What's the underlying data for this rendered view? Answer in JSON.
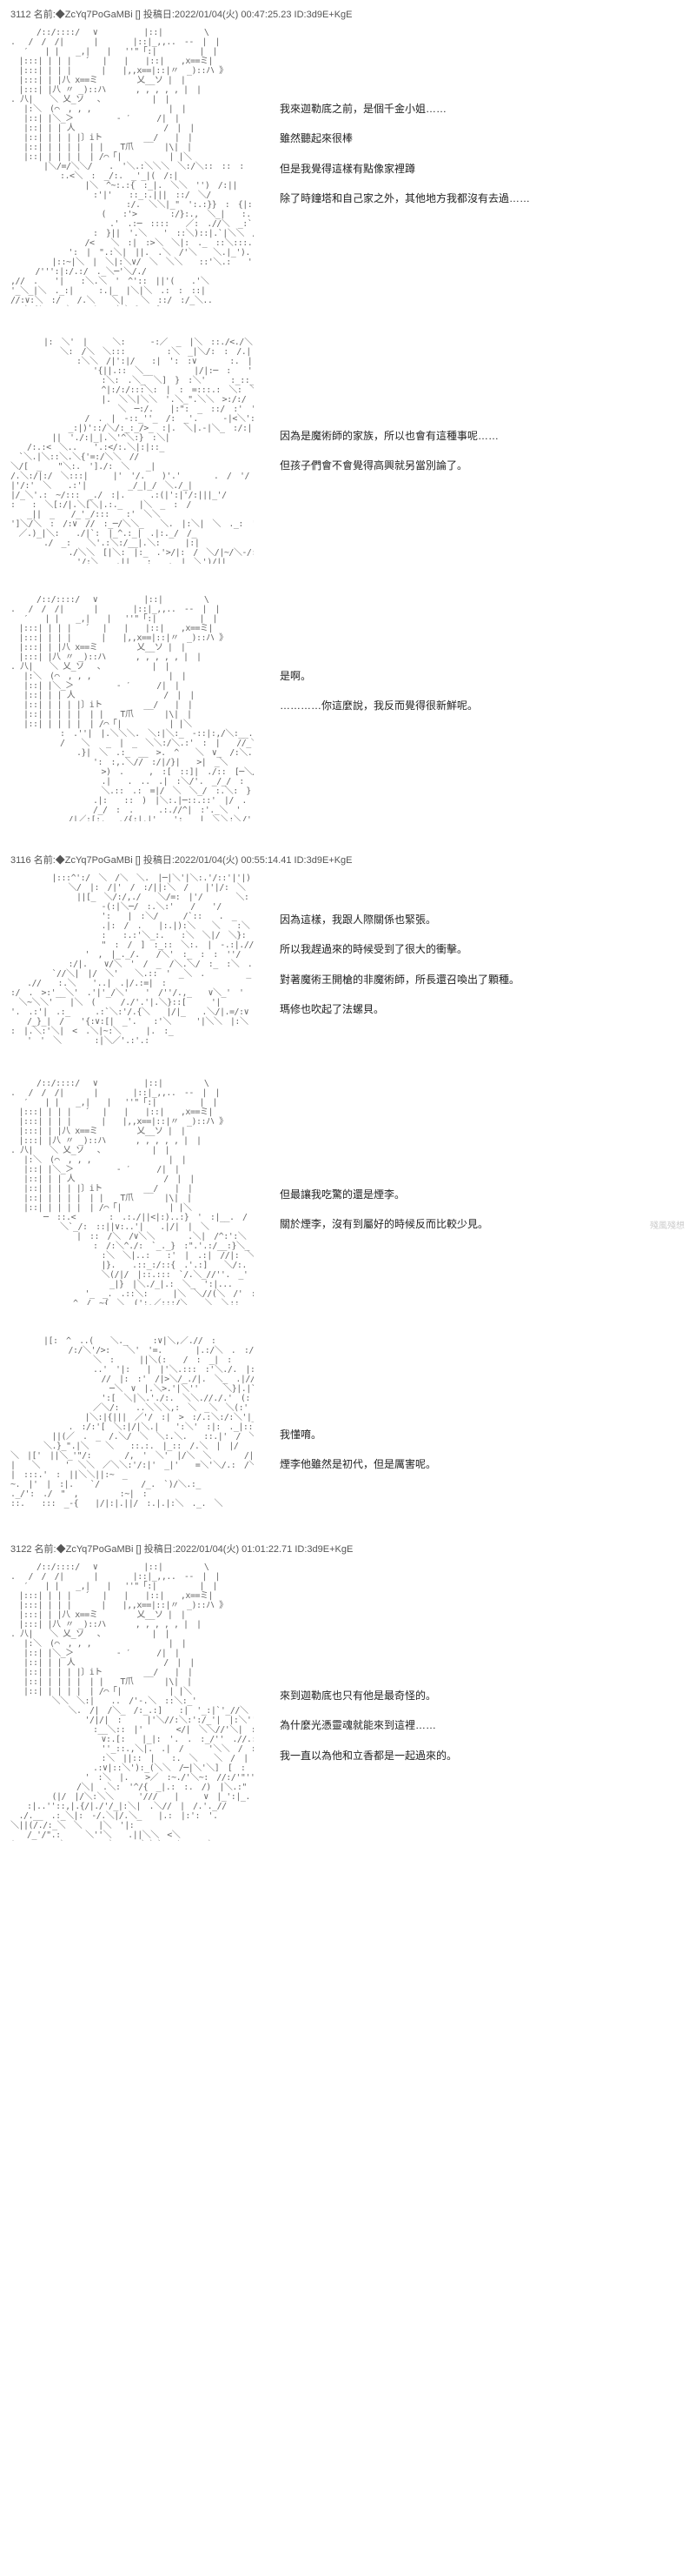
{
  "posts": [
    {
      "num": "3112",
      "name": "◆ZcYq7PoGaMBi",
      "date": "2022/01/04(火) 00:47:25.23",
      "id": "ID:3d9E+KgE",
      "dialogue": [
        "我來迦勒底之前，是個千金小姐……",
        "雖然聽起來很棒",
        "但是我覺得這樣有點像家裡蹲",
        "除了時鐘塔和自己家之外，其他地方我都沒有去過……"
      ],
      "dialogue_padding": "80px",
      "aa_h": "aa-tall"
    },
    {
      "num": "",
      "dialogue": [
        "因為是魔術師的家族，所以也會有這種事呢……",
        "但孩子們會不會覺得高興就另當別論了。"
      ],
      "dialogue_padding": "100px",
      "aa_h": "aa-med"
    },
    {
      "num": "",
      "dialogue": [
        "是啊。",
        "…………你這麼說，我反而覺得很新鮮呢。"
      ],
      "dialogue_padding": "80px",
      "aa_h": "aa-med"
    },
    {
      "num": "3116",
      "name": "◆ZcYq7PoGaMBi",
      "date": "2022/01/04(火) 00:55:14.41",
      "id": "ID:3d9E+KgE",
      "dialogue": [
        "因為這樣，我跟人際關係也緊張。",
        "所以我趕過來的時候受到了很大的衝擊。",
        "對著魔術王開槍的非魔術師，所長還召喚出了顆種。",
        "瑪修也吹起了法螺貝。"
      ],
      "dialogue_padding": "40px",
      "aa_h": "aa-short"
    },
    {
      "num": "",
      "dialogue": [
        "但最讓我吃驚的還是煙李。",
        "關於煙李，沒有到屬好的時候反而比較少見。"
      ],
      "dialogue_padding": "120px",
      "aa_h": "aa-med"
    },
    {
      "num": "",
      "dialogue": [
        "我懂唷。",
        "煙李他雖然是初代，但是厲害呢。"
      ],
      "dialogue_padding": "100px",
      "aa_h": "aa-short"
    },
    {
      "num": "3122",
      "name": "◆ZcYq7PoGaMBi",
      "date": "2022/01/04(火) 01:01:22.71",
      "id": "ID:3d9E+KgE",
      "dialogue": [
        "來到迦勒底也只有他是最奇怪的。",
        "為什麼光憑靈魂就能來到這裡……",
        "我一直以為他和立香都是一起過來的。"
      ],
      "dialogue_padding": "140px",
      "aa_h": "aa-tall"
    }
  ],
  "watermark": "殘風殘想",
  "aa_fill": "　 　 /::/::::/　 ∨　 　　　　|::|　　　　　\\\n.　 /　/　/|　 　　|　　 　 |::|_,,..　-‐　|　|\n　 ′　　| |　　_,|　　|　 ''\"「:|　　 　 　|　|\n　|:::| | | |　 ´ 　|　　|　　|::|　　,x==ミ|\n　|:::| | | |　 　　|　　|,,x==|::|〃　_)::ハ 》\n　|:::| | |八 x==ミ　 　 　 乂__ソ |　|\n　|:::| |八 〃 _)::ハ　　　 , , , , , |　|\n. 八|　　＼ 乂_ソ　 、　 　 　　　|　|\n　 |:＼　(⌒　, , ,　　　 　 　 　　 |　|\n　 |::| |＼_＞　　　 　 - ′　 　 /|　|\n　 |::| | | 人　　　　　　　 　 　 /　|　|\n　 |::| | | | |〕iト　　　　　__/　　|　|\n　 |::| | | | |　| |　　T爪 　 　 |\\|　|\n　 |::| | | | |　| /⌒「|　 　　 　 | |＼"
}
